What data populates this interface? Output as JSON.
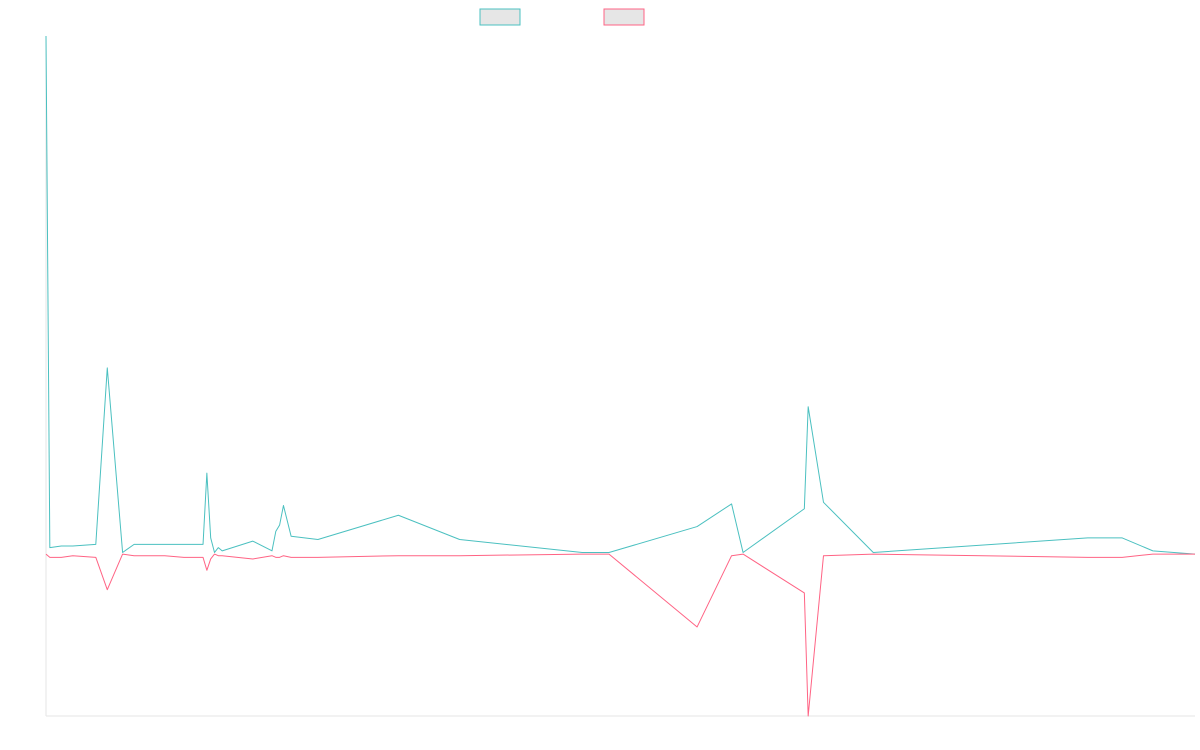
{
  "chart_data": {
    "type": "line",
    "title": "",
    "xlabel": "",
    "ylabel": "",
    "x": [
      0,
      1,
      4,
      7,
      13,
      16,
      20,
      23,
      31,
      36,
      41,
      42,
      43,
      44,
      45,
      46,
      54,
      59,
      60,
      61,
      62,
      64,
      71,
      92,
      108,
      140,
      147,
      170,
      179,
      182,
      198,
      199,
      203,
      216,
      272,
      281,
      289,
      300
    ],
    "ylim": [
      -1.0,
      3.2
    ],
    "legend_position": "top-center",
    "grid": false,
    "colors": {
      "series_a": "#4bc0c0",
      "series_b": "#ff6384",
      "legend_fill": "#e6e6e6",
      "axis": "#e5e5e5"
    },
    "series": [
      {
        "name": "",
        "color": "#4bc0c0",
        "values": [
          3.2,
          0.04,
          0.05,
          0.05,
          0.06,
          1.15,
          0.01,
          0.06,
          0.06,
          0.06,
          0.06,
          0.5,
          0.1,
          0.01,
          0.04,
          0.02,
          0.08,
          0.02,
          0.14,
          0.18,
          0.3,
          0.11,
          0.09,
          0.24,
          0.09,
          0.01,
          0.01,
          0.17,
          0.31,
          0.01,
          0.28,
          0.91,
          0.32,
          0.01,
          0.1,
          0.1,
          0.02,
          0.0
        ]
      },
      {
        "name": "",
        "color": "#ff6384",
        "values": [
          0.0,
          -0.02,
          -0.02,
          -0.01,
          -0.02,
          -0.22,
          0.0,
          -0.01,
          -0.01,
          -0.02,
          -0.02,
          -0.1,
          -0.03,
          0.0,
          -0.01,
          -0.01,
          -0.03,
          -0.01,
          -0.02,
          -0.02,
          -0.01,
          -0.02,
          -0.02,
          -0.01,
          -0.01,
          0.0,
          0.0,
          -0.45,
          -0.01,
          0.0,
          -0.24,
          -1.0,
          -0.01,
          0.0,
          -0.02,
          -0.02,
          0.0,
          0.0
        ]
      }
    ]
  }
}
